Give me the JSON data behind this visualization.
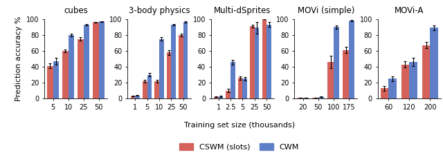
{
  "subplots": [
    {
      "title": "cubes",
      "x_labels": [
        "5",
        "10",
        "25",
        "50"
      ],
      "cswm_values": [
        41,
        60,
        75,
        96
      ],
      "cwm_values": [
        47,
        80,
        93,
        97
      ],
      "cswm_err": [
        3,
        2,
        2,
        0.5
      ],
      "cwm_err": [
        4,
        2,
        1,
        0.5
      ],
      "ylim": [
        0,
        100
      ],
      "yticks": [
        0,
        20,
        40,
        60,
        80,
        100
      ]
    },
    {
      "title": "3-body physics",
      "x_labels": [
        "1",
        "5",
        "10",
        "25",
        "50"
      ],
      "cswm_values": [
        3,
        22,
        22,
        58,
        80
      ],
      "cwm_values": [
        4,
        30,
        75,
        93,
        96
      ],
      "cswm_err": [
        0.5,
        2,
        2,
        3,
        2
      ],
      "cwm_err": [
        0.5,
        2,
        2,
        1,
        1
      ],
      "ylim": [
        0,
        100
      ],
      "yticks": [
        0,
        20,
        40,
        60,
        80,
        100
      ]
    },
    {
      "title": "Multi-dSprites",
      "x_labels": [
        "1",
        "2.5",
        "5",
        "25",
        "50"
      ],
      "cswm_values": [
        2,
        10,
        26,
        91,
        100
      ],
      "cwm_values": [
        3,
        46,
        25,
        89,
        93
      ],
      "cswm_err": [
        0.5,
        2,
        2,
        2,
        0.5
      ],
      "cwm_err": [
        1,
        3,
        2,
        7,
        3
      ],
      "ylim": [
        0,
        100
      ],
      "yticks": [
        0,
        20,
        40,
        60,
        80,
        100
      ]
    },
    {
      "title": "MOVi (simple)",
      "x_labels": [
        "20",
        "50",
        "100",
        "175"
      ],
      "cswm_values": [
        1,
        1,
        46,
        61
      ],
      "cwm_values": [
        1,
        2,
        90,
        98
      ],
      "cswm_err": [
        0.3,
        0.3,
        8,
        4
      ],
      "cwm_err": [
        0.3,
        0.5,
        2,
        1
      ],
      "ylim": [
        0,
        100
      ],
      "yticks": [
        0,
        20,
        40,
        60,
        80,
        100
      ]
    },
    {
      "title": "MOVi-A",
      "x_labels": [
        "60",
        "120",
        "200"
      ],
      "cswm_values": [
        13,
        43,
        67
      ],
      "cwm_values": [
        25,
        46,
        89
      ],
      "cswm_err": [
        3,
        4,
        4
      ],
      "cwm_err": [
        3,
        5,
        3
      ],
      "ylim": [
        0,
        100
      ],
      "yticks": [
        0,
        20,
        40,
        60,
        80,
        100
      ]
    }
  ],
  "xlabel": "Training set size (thousands)",
  "ylabel": "Prediction accuracy %",
  "cswm_color": "#d4625a",
  "cwm_color": "#5e7ec8",
  "bar_width": 0.38,
  "legend_labels": [
    "CSWM (slots)",
    "CWM"
  ],
  "title_fontsize": 8.5,
  "label_fontsize": 8,
  "tick_fontsize": 7
}
